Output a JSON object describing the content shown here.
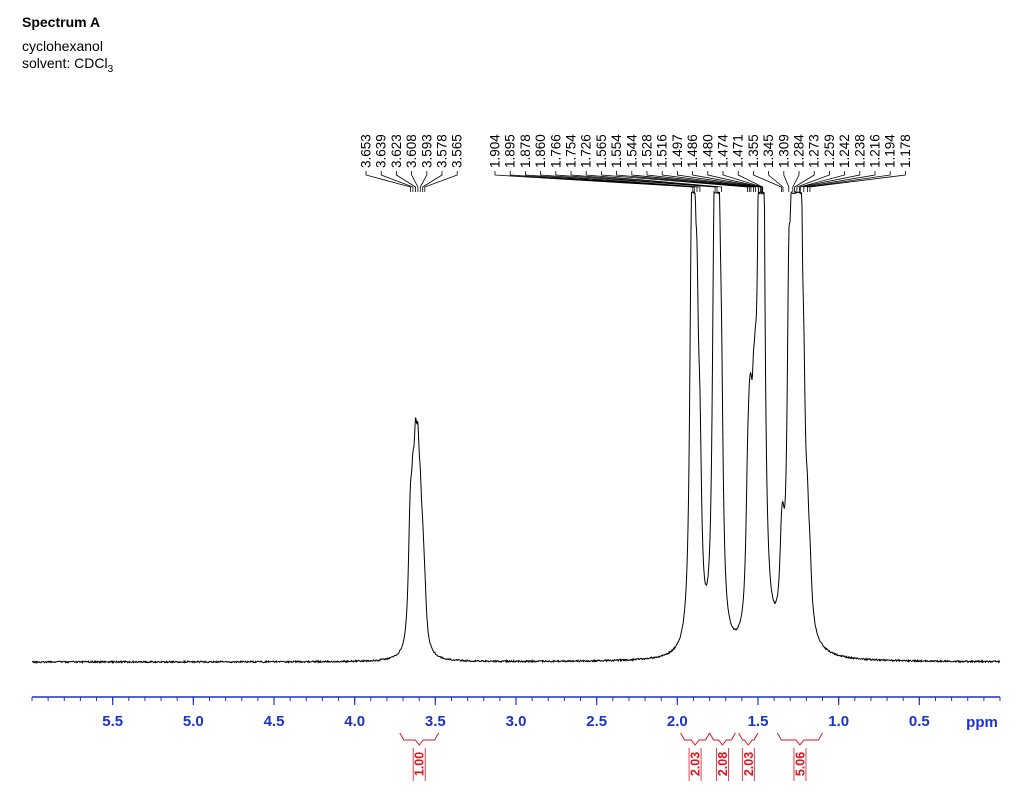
{
  "header": {
    "title": "Spectrum A",
    "compound": "cyclohexanol",
    "solvent_prefix": "solvent: CDCl",
    "solvent_subscript": "3"
  },
  "colors": {
    "spectrum": "#000000",
    "axis": "#1a33cc",
    "integral": "#e0121c"
  },
  "chart_data": {
    "type": "line",
    "title": "Spectrum A",
    "xlabel": "ppm",
    "xlim": [
      6.0,
      0.0
    ],
    "x_reversed": true,
    "ticks": [
      {
        "v": 5.5,
        "label": "5.5"
      },
      {
        "v": 5.0,
        "label": "5.0"
      },
      {
        "v": 4.5,
        "label": "4.5"
      },
      {
        "v": 4.0,
        "label": "4.0"
      },
      {
        "v": 3.5,
        "label": "3.5"
      },
      {
        "v": 3.0,
        "label": "3.0"
      },
      {
        "v": 2.5,
        "label": "2.5"
      },
      {
        "v": 2.0,
        "label": "2.0"
      },
      {
        "v": 1.5,
        "label": "1.5"
      },
      {
        "v": 1.0,
        "label": "1.0"
      },
      {
        "v": 0.5,
        "label": "0.5"
      }
    ],
    "minor_tick_step": 0.1,
    "peak_groups": [
      {
        "shifts": [
          "3.653",
          "3.639",
          "3.623",
          "3.608",
          "3.593",
          "3.578",
          "3.565"
        ]
      },
      {
        "shifts": [
          "1.904",
          "1.895",
          "1.878",
          "1.860",
          "1.766",
          "1.754",
          "1.726",
          "1.565",
          "1.554",
          "1.544",
          "1.528",
          "1.516",
          "1.497",
          "1.486",
          "1.480",
          "1.474",
          "1.471",
          "1.355",
          "1.345",
          "1.309",
          "1.284",
          "1.273",
          "1.259",
          "1.242",
          "1.238",
          "1.216",
          "1.194",
          "1.178"
        ]
      }
    ],
    "integrals": [
      {
        "label": "1.00",
        "from": 3.72,
        "to": 3.48
      },
      {
        "label": "2.03",
        "from": 1.98,
        "to": 1.8
      },
      {
        "label": "2.08",
        "from": 1.8,
        "to": 1.64
      },
      {
        "label": "2.03",
        "from": 1.62,
        "to": 1.5
      },
      {
        "label": "5.06",
        "from": 1.38,
        "to": 1.1
      }
    ],
    "series": [
      {
        "values": [
          {
            "x": 3.66,
            "y": 0.1
          },
          {
            "x": 3.653,
            "y": 0.16
          },
          {
            "x": 3.639,
            "y": 0.21
          },
          {
            "x": 3.623,
            "y": 0.28
          },
          {
            "x": 3.608,
            "y": 0.27
          },
          {
            "x": 3.593,
            "y": 0.19
          },
          {
            "x": 3.578,
            "y": 0.13
          },
          {
            "x": 3.565,
            "y": 0.07
          },
          {
            "x": 1.915,
            "y": 0.45
          },
          {
            "x": 1.904,
            "y": 0.52
          },
          {
            "x": 1.895,
            "y": 0.53
          },
          {
            "x": 1.878,
            "y": 0.48
          },
          {
            "x": 1.86,
            "y": 0.3
          },
          {
            "x": 1.775,
            "y": 0.4
          },
          {
            "x": 1.766,
            "y": 0.48
          },
          {
            "x": 1.754,
            "y": 0.59
          },
          {
            "x": 1.74,
            "y": 0.5
          },
          {
            "x": 1.726,
            "y": 0.36
          },
          {
            "x": 1.565,
            "y": 0.2
          },
          {
            "x": 1.554,
            "y": 0.21
          },
          {
            "x": 1.544,
            "y": 0.22
          },
          {
            "x": 1.528,
            "y": 0.24
          },
          {
            "x": 1.516,
            "y": 0.22
          },
          {
            "x": 1.497,
            "y": 0.3
          },
          {
            "x": 1.486,
            "y": 0.4
          },
          {
            "x": 1.48,
            "y": 0.5
          },
          {
            "x": 1.474,
            "y": 1.0
          },
          {
            "x": 1.471,
            "y": 0.55
          },
          {
            "x": 1.355,
            "y": 0.12
          },
          {
            "x": 1.345,
            "y": 0.1
          },
          {
            "x": 1.309,
            "y": 0.55
          },
          {
            "x": 1.284,
            "y": 0.86
          },
          {
            "x": 1.273,
            "y": 0.9
          },
          {
            "x": 1.259,
            "y": 0.85
          },
          {
            "x": 1.242,
            "y": 0.7
          },
          {
            "x": 1.238,
            "y": 0.55
          },
          {
            "x": 1.216,
            "y": 0.3
          },
          {
            "x": 1.194,
            "y": 0.15
          },
          {
            "x": 1.178,
            "y": 0.09
          }
        ]
      }
    ]
  }
}
